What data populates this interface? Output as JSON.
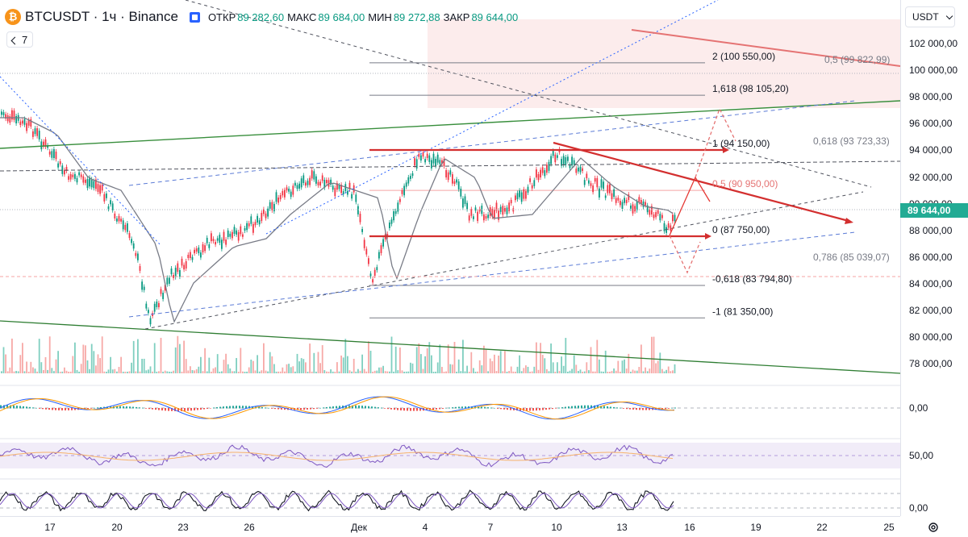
{
  "header": {
    "logo_letter": "₿",
    "symbol_title": "BTCUSDT · 1ч · Binance",
    "ohlc": [
      {
        "label": "ОТКР",
        "value": "89 282,60"
      },
      {
        "label": "МАКС",
        "value": "89 684,00"
      },
      {
        "label": "МИН",
        "value": "89 272,88"
      },
      {
        "label": "ЗАКР",
        "value": "89 644,00"
      }
    ],
    "indicator_count": "7"
  },
  "price_axis": {
    "currency": "USDT",
    "labels": [
      "102 000,00",
      "100 000,00",
      "98 000,00",
      "96 000,00",
      "94 000,00",
      "92 000,00",
      "90 000,00",
      "88 000,00",
      "86 000,00",
      "84 000,00",
      "82 000,00",
      "80 000,00",
      "78 000,00"
    ],
    "last_price": "89 644,00",
    "indicator_labels": [
      "0,00",
      "50,00",
      "0,00"
    ]
  },
  "time_axis": {
    "labels": [
      "17",
      "20",
      "23",
      "26",
      "Дек",
      "4",
      "7",
      "10",
      "13",
      "16",
      "19",
      "22",
      "25"
    ]
  },
  "fib_left": {
    "levels": [
      {
        "text": "2 (100 550,00)",
        "price": 100550
      },
      {
        "text": "1,618 (98 105,20)",
        "price": 98105.2
      },
      {
        "text": "1 (94 150,00)",
        "price": 94150
      },
      {
        "text": "0,5 (90 950,00)",
        "price": 90950
      },
      {
        "text": "0 (87 750,00)",
        "price": 87750
      },
      {
        "text": "-0,618 (83 794,80)",
        "price": 83794.8
      },
      {
        "text": "-1 (81 350,00)",
        "price": 81350
      }
    ]
  },
  "fib_right": {
    "levels": [
      {
        "text": "0,5 (99 822,99)",
        "price": 99822.99
      },
      {
        "text": "0,618 (93 723,33)",
        "price": 93723.33
      },
      {
        "text": "0,786 (85 039,07)",
        "price": 85039.07
      }
    ]
  },
  "colors": {
    "up": "#089981",
    "down": "#f23645",
    "accent_blue": "#2962ff",
    "trend_red": "#d32f2f",
    "trend_green": "#388e3c",
    "rsi_band": "#ede7f6"
  }
}
